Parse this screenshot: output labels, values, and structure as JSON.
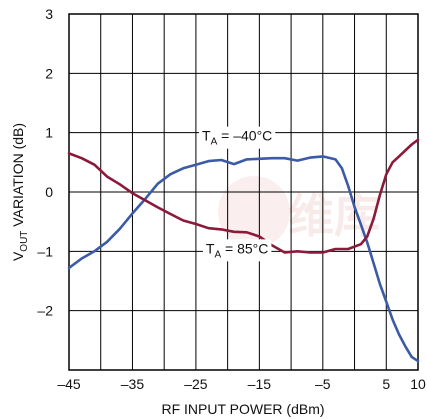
{
  "chart_data": {
    "type": "line",
    "title": "",
    "xlabel": "RF INPUT POWER (dBm)",
    "ylabel": {
      "prefix": "V",
      "subscript": "OUT",
      "suffix": " VARIATION (dB)"
    },
    "xlim": [
      -45,
      10
    ],
    "ylim": [
      -3,
      3
    ],
    "x_ticks": [
      -45,
      -35,
      -25,
      -15,
      -5,
      5,
      10
    ],
    "x_tick_labels": [
      "–45",
      "–35",
      "–25",
      "–15",
      "–5",
      "5",
      "10"
    ],
    "y_ticks": [
      -2,
      -1,
      0,
      1,
      2,
      3
    ],
    "y_tick_labels": [
      "–2",
      "–1",
      "0",
      "1",
      "2",
      "3"
    ],
    "x_grid": [
      -45,
      -40,
      -35,
      -30,
      -25,
      -20,
      -15,
      -10,
      -5,
      0,
      5,
      10
    ],
    "y_grid": [
      -3,
      -2,
      -1,
      0,
      1,
      2,
      3
    ],
    "grid": true,
    "series": [
      {
        "name": "T_A = –40°C",
        "label": {
          "prefix": "T",
          "subscript": "A",
          "suffix": " = –40°C"
        },
        "color": "#3b5ba7",
        "x": [
          -45,
          -43,
          -41,
          -39,
          -37,
          -35,
          -33,
          -31,
          -29,
          -27,
          -25,
          -23,
          -21,
          -19,
          -17,
          -15,
          -13,
          -11,
          -9,
          -7,
          -5,
          -3,
          -2,
          -1,
          0,
          1,
          2,
          3,
          4,
          5,
          6,
          7,
          8,
          9,
          10
        ],
        "y": [
          -1.28,
          -1.12,
          -1.0,
          -0.84,
          -0.62,
          -0.36,
          -0.12,
          0.14,
          0.3,
          0.4,
          0.46,
          0.52,
          0.54,
          0.47,
          0.55,
          0.56,
          0.57,
          0.57,
          0.53,
          0.58,
          0.6,
          0.55,
          0.4,
          0.1,
          -0.25,
          -0.55,
          -0.85,
          -1.2,
          -1.55,
          -1.85,
          -2.15,
          -2.4,
          -2.6,
          -2.78,
          -2.85
        ]
      },
      {
        "name": "T_A = 85°C",
        "label": {
          "prefix": "T",
          "subscript": "A",
          "suffix": " = 85°C"
        },
        "color": "#8b1a3a",
        "x": [
          -45,
          -43,
          -41,
          -39,
          -37,
          -35,
          -33,
          -31,
          -29,
          -27,
          -25,
          -23,
          -21,
          -19,
          -17,
          -15,
          -13,
          -11,
          -9,
          -7,
          -5,
          -3,
          -1,
          1,
          2,
          3,
          4,
          5,
          6,
          7,
          8,
          9,
          10
        ],
        "y": [
          0.65,
          0.57,
          0.46,
          0.26,
          0.13,
          -0.02,
          -0.14,
          -0.26,
          -0.37,
          -0.48,
          -0.54,
          -0.61,
          -0.63,
          -0.67,
          -0.68,
          -0.75,
          -0.9,
          -1.02,
          -1.0,
          -1.02,
          -1.02,
          -0.96,
          -0.96,
          -0.88,
          -0.75,
          -0.45,
          -0.05,
          0.3,
          0.5,
          0.6,
          0.7,
          0.8,
          0.88
        ]
      }
    ],
    "annotations": [
      {
        "series": 0,
        "text_prefix": "T",
        "text_subscript": "A",
        "text_suffix": " = –40°C",
        "at_x": -18.5,
        "at_y": 0.95
      },
      {
        "series": 1,
        "text_prefix": "T",
        "text_subscript": "A",
        "text_suffix": " = 85°C",
        "at_x": -18.5,
        "at_y": -0.95
      }
    ]
  },
  "watermark": "维库"
}
